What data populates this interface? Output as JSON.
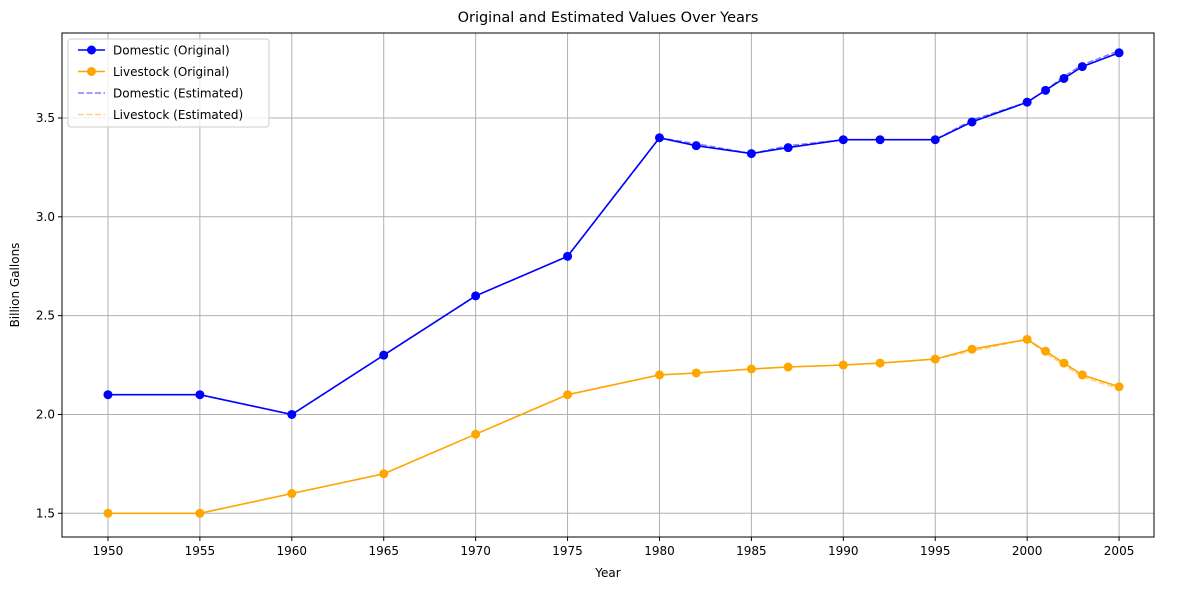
{
  "chart_data": {
    "type": "line",
    "title": "Original and Estimated Values Over Years",
    "xlabel": "Year",
    "ylabel": "Billion Gallons",
    "xlim": [
      1947.5,
      2006.9
    ],
    "ylim": [
      1.38,
      3.93
    ],
    "xticks": [
      1950,
      1955,
      1960,
      1965,
      1970,
      1975,
      1980,
      1985,
      1990,
      1995,
      2000,
      2005
    ],
    "yticks": [
      1.5,
      2.0,
      2.5,
      3.0,
      3.5
    ],
    "ytick_labels": [
      "1.5",
      "2.0",
      "2.5",
      "3.0",
      "3.5"
    ],
    "grid": true,
    "legend_position": "top-left",
    "series": [
      {
        "name": "Domestic (Original)",
        "color": "#0000ff",
        "style": "solid-marker",
        "x": [
          1950,
          1955,
          1960,
          1965,
          1970,
          1975,
          1980,
          1982,
          1985,
          1987,
          1990,
          1992,
          1995,
          1997,
          2000,
          2001,
          2002,
          2003,
          2005
        ],
        "y": [
          2.1,
          2.1,
          2.0,
          2.3,
          2.6,
          2.8,
          3.4,
          3.36,
          3.32,
          3.35,
          3.39,
          3.39,
          3.39,
          3.48,
          3.58,
          3.64,
          3.7,
          3.76,
          3.83
        ]
      },
      {
        "name": "Livestock (Original)",
        "color": "#ffa500",
        "style": "solid-marker",
        "x": [
          1950,
          1955,
          1960,
          1965,
          1970,
          1975,
          1980,
          1982,
          1985,
          1987,
          1990,
          1992,
          1995,
          1997,
          2000,
          2001,
          2002,
          2003,
          2005
        ],
        "y": [
          1.5,
          1.5,
          1.6,
          1.7,
          1.9,
          2.1,
          2.2,
          2.21,
          2.23,
          2.24,
          2.25,
          2.26,
          2.28,
          2.33,
          2.38,
          2.32,
          2.26,
          2.2,
          2.14
        ]
      },
      {
        "name": "Domestic (Estimated)",
        "color": "#0000ff",
        "style": "dashed",
        "x": [
          1950,
          1955,
          1960,
          1965,
          1970,
          1975,
          1980,
          1982,
          1985,
          1987,
          1990,
          1992,
          1995,
          1997,
          2000,
          2001,
          2002,
          2003,
          2005
        ],
        "y": [
          2.1,
          2.1,
          2.0,
          2.3,
          2.6,
          2.8,
          3.4,
          3.37,
          3.32,
          3.36,
          3.39,
          3.39,
          3.39,
          3.49,
          3.58,
          3.64,
          3.71,
          3.77,
          3.84
        ]
      },
      {
        "name": "Livestock (Estimated)",
        "color": "#ffa500",
        "style": "dashed",
        "x": [
          1950,
          1955,
          1960,
          1965,
          1970,
          1975,
          1980,
          1982,
          1985,
          1987,
          1990,
          1992,
          1995,
          1997,
          2000,
          2001,
          2002,
          2003,
          2005
        ],
        "y": [
          1.5,
          1.5,
          1.6,
          1.7,
          1.9,
          2.1,
          2.2,
          2.21,
          2.23,
          2.24,
          2.25,
          2.26,
          2.28,
          2.32,
          2.38,
          2.31,
          2.25,
          2.19,
          2.13
        ]
      }
    ]
  }
}
